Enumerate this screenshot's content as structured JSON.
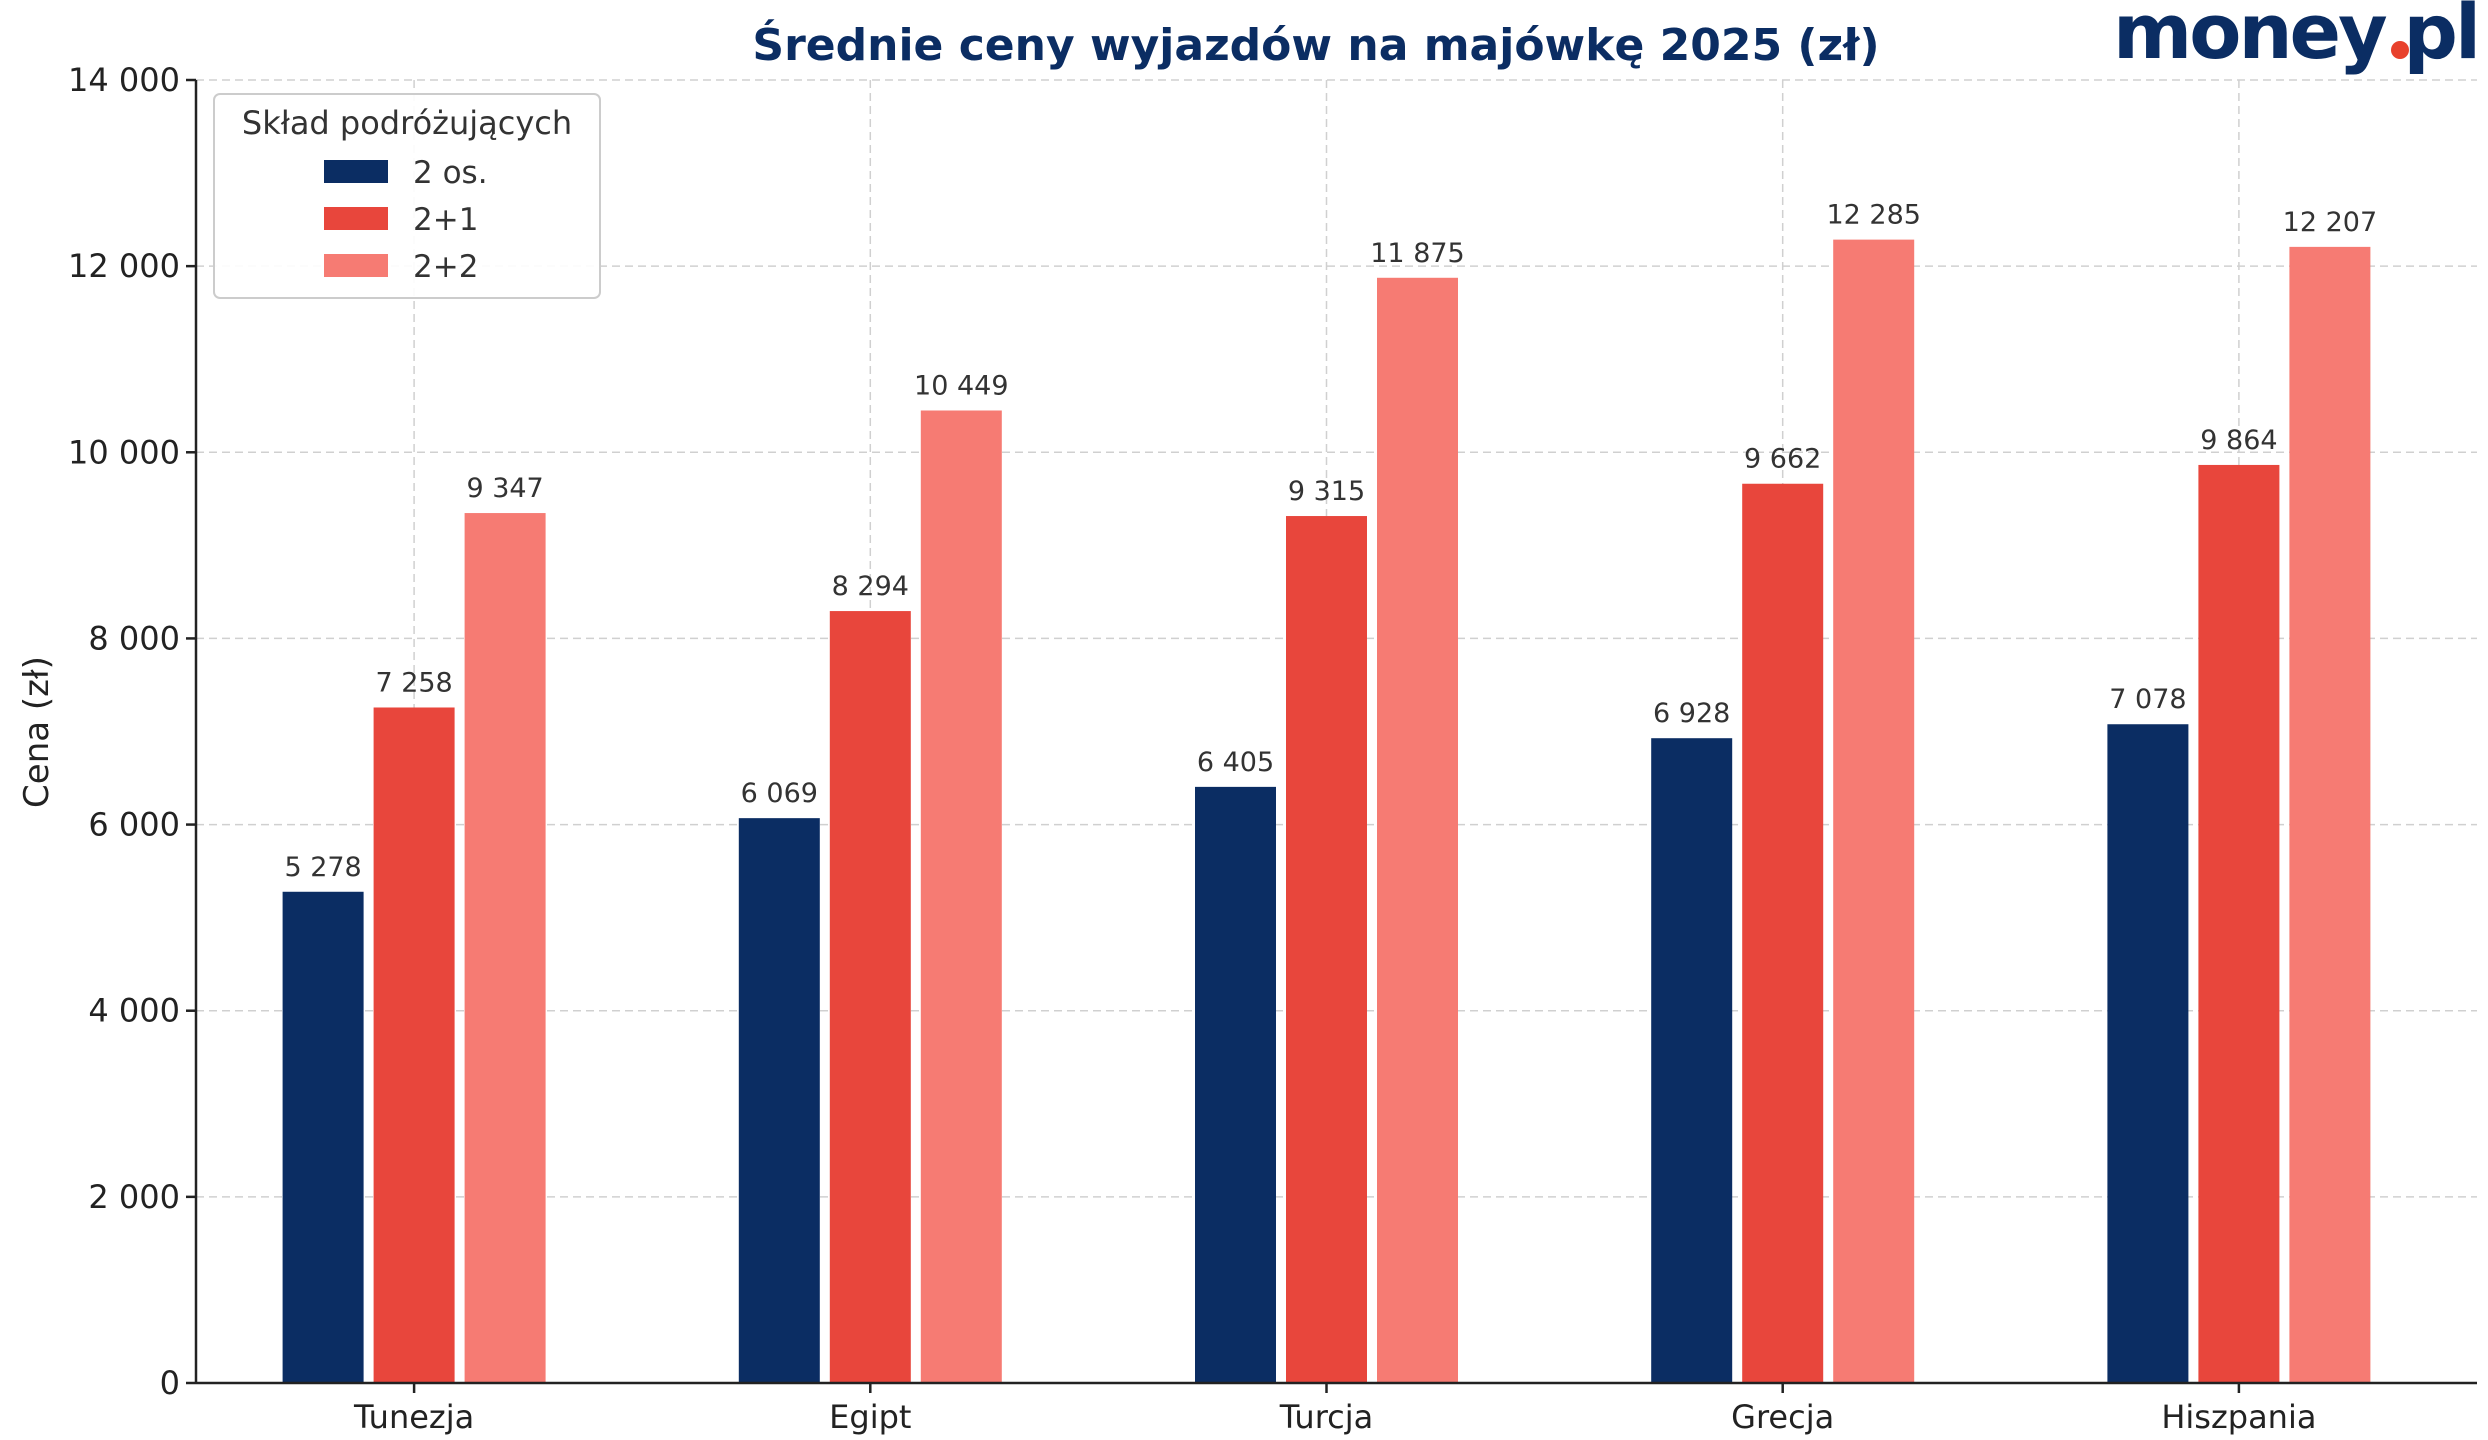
{
  "logo": {
    "text": "money.pl",
    "color": "#0b2d63",
    "dot_color": "#e8412c"
  },
  "chart_data": {
    "type": "bar",
    "title": "Średnie ceny wyjazdów na majówkę 2025 (zł)",
    "xlabel": "",
    "ylabel": "Cena (zł)",
    "ylim": [
      0,
      14000
    ],
    "yticks": [
      0,
      2000,
      4000,
      6000,
      8000,
      10000,
      12000,
      14000
    ],
    "ytick_labels": [
      "0",
      "2 000",
      "4 000",
      "6 000",
      "8 000",
      "10 000",
      "12 000",
      "14 000"
    ],
    "grid": true,
    "legend": {
      "title": "Skład podróżujących",
      "placement": "top-left"
    },
    "categories": [
      "Tunezja",
      "Egipt",
      "Turcja",
      "Grecja",
      "Hiszpania"
    ],
    "series": [
      {
        "name": "2 os.",
        "color": "#0b2d63",
        "values": [
          5278,
          6069,
          6405,
          6928,
          7078
        ],
        "labels": [
          "5 278",
          "6 069",
          "6 405",
          "6 928",
          "7 078"
        ]
      },
      {
        "name": "2+1",
        "color": "#e8463c",
        "values": [
          7258,
          8294,
          9315,
          9662,
          9864
        ],
        "labels": [
          "7 258",
          "8 294",
          "9 315",
          "9 662",
          "9 864"
        ]
      },
      {
        "name": "2+2",
        "color": "#f67b73",
        "values": [
          9347,
          10449,
          11875,
          12285,
          12207
        ],
        "labels": [
          "9 347",
          "10 449",
          "11 875",
          "12 285",
          "12 207"
        ]
      }
    ]
  }
}
